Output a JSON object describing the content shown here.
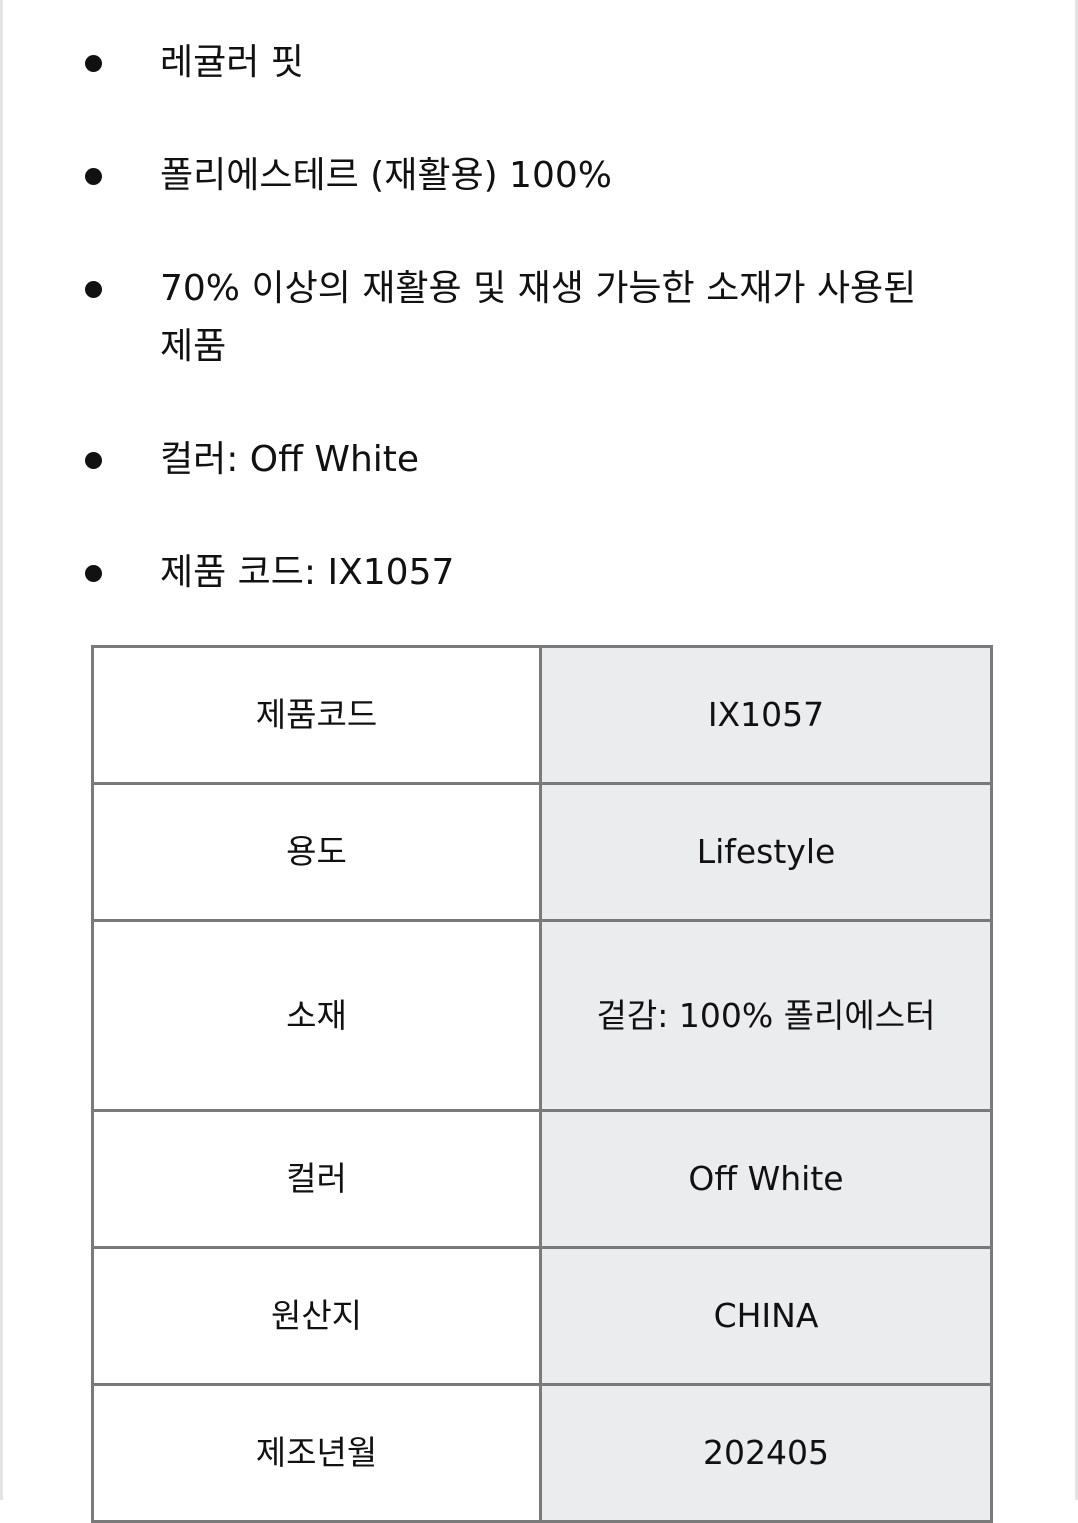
{
  "bullets": [
    "레귤러 핏",
    "폴리에스테르 (재활용) 100%",
    "70% 이상의 재활용 및 재생 가능한 소재가 사용된 제품",
    "컬러: Off White",
    "제품 코드: IX1057"
  ],
  "spec_table": [
    {
      "label": "제품코드",
      "value": "IX1057"
    },
    {
      "label": "용도",
      "value": "Lifestyle"
    },
    {
      "label": "소재",
      "value": "겉감: 100% 폴리에스터"
    },
    {
      "label": "컬러",
      "value": "Off White"
    },
    {
      "label": "원산지",
      "value": "CHINA"
    },
    {
      "label": "제조년월",
      "value": "202405"
    }
  ]
}
